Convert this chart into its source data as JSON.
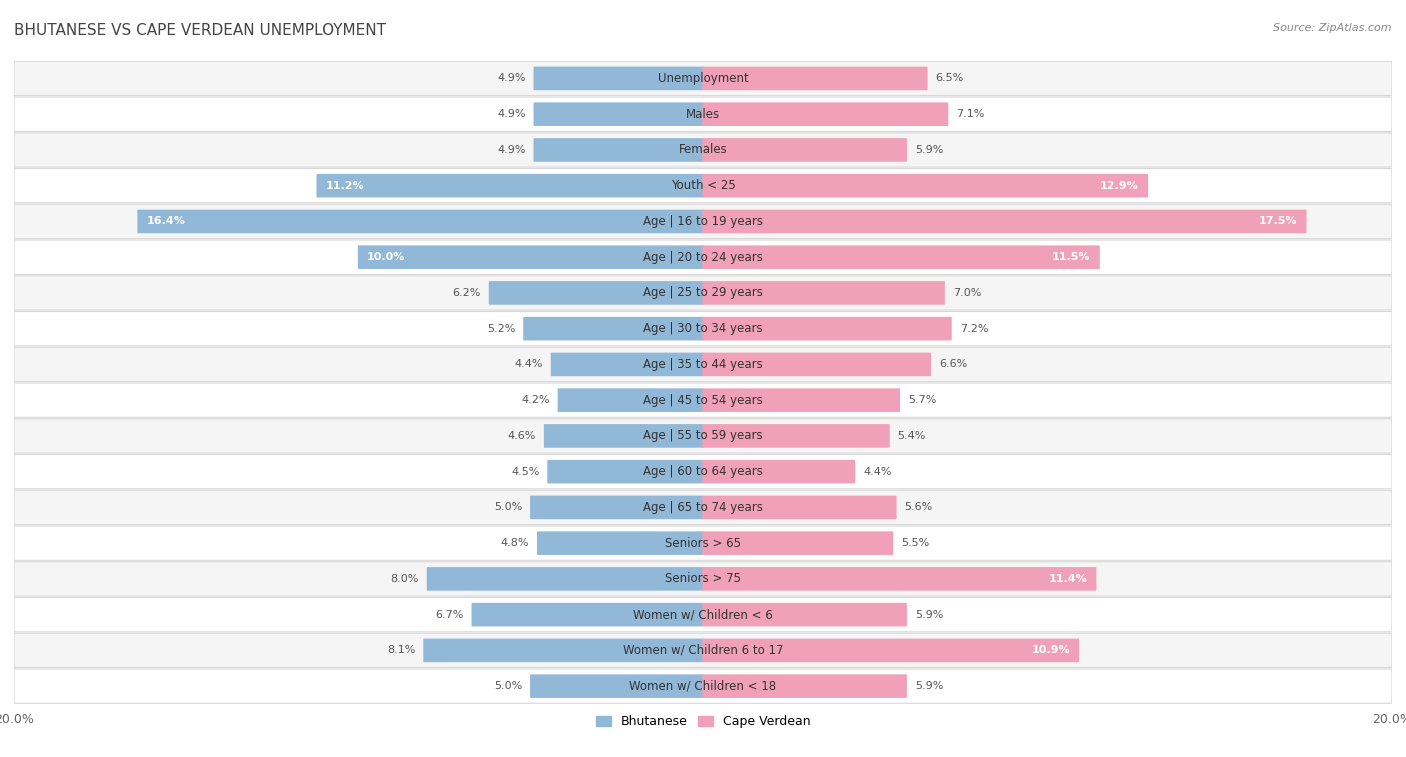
{
  "title": "BHUTANESE VS CAPE VERDEAN UNEMPLOYMENT",
  "source": "Source: ZipAtlas.com",
  "categories": [
    "Unemployment",
    "Males",
    "Females",
    "Youth < 25",
    "Age | 16 to 19 years",
    "Age | 20 to 24 years",
    "Age | 25 to 29 years",
    "Age | 30 to 34 years",
    "Age | 35 to 44 years",
    "Age | 45 to 54 years",
    "Age | 55 to 59 years",
    "Age | 60 to 64 years",
    "Age | 65 to 74 years",
    "Seniors > 65",
    "Seniors > 75",
    "Women w/ Children < 6",
    "Women w/ Children 6 to 17",
    "Women w/ Children < 18"
  ],
  "bhutanese": [
    4.9,
    4.9,
    4.9,
    11.2,
    16.4,
    10.0,
    6.2,
    5.2,
    4.4,
    4.2,
    4.6,
    4.5,
    5.0,
    4.8,
    8.0,
    6.7,
    8.1,
    5.0
  ],
  "cape_verdean": [
    6.5,
    7.1,
    5.9,
    12.9,
    17.5,
    11.5,
    7.0,
    7.2,
    6.6,
    5.7,
    5.4,
    4.4,
    5.6,
    5.5,
    11.4,
    5.9,
    10.9,
    5.9
  ],
  "bhutanese_color": "#92b8d8",
  "cape_verdean_color": "#f0a0b8",
  "bg_color": "#ffffff",
  "row_colors": [
    "#f5f5f5",
    "#ffffff"
  ],
  "row_border": "#d8d8d8",
  "axis_limit": 20.0,
  "bar_height": 0.62,
  "label_threshold_inside": 9.5,
  "title_fontsize": 11,
  "label_fontsize": 8,
  "cat_fontsize": 8.5
}
